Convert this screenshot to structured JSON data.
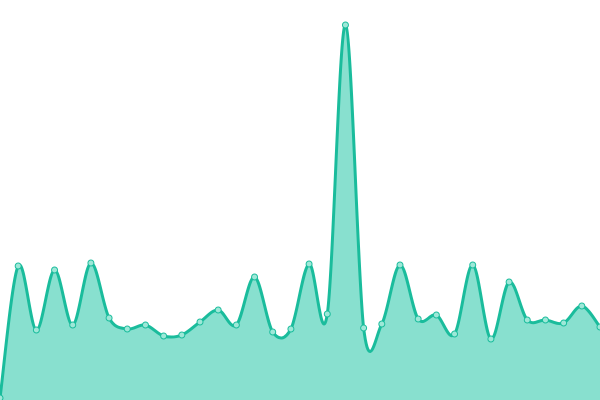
{
  "chart_data": {
    "type": "area",
    "title": "",
    "xlabel": "",
    "ylabel": "",
    "grid": false,
    "legend": "none",
    "smooth": true,
    "x": [
      0,
      1,
      2,
      3,
      4,
      5,
      6,
      7,
      8,
      9,
      10,
      11,
      12,
      13,
      14,
      15,
      16,
      17,
      18,
      19,
      20,
      21,
      22,
      23,
      24,
      25,
      26,
      27,
      28,
      29,
      30,
      31,
      32,
      33
    ],
    "ylim": [
      0,
      400
    ],
    "series": [
      {
        "values": [
          2,
          134,
          70,
          130,
          75,
          137,
          82,
          71,
          75,
          64,
          65,
          78,
          90,
          75,
          123,
          68,
          71,
          136,
          86,
          375,
          72,
          76,
          135,
          81,
          85,
          66,
          135,
          61,
          118,
          80,
          80,
          77,
          94,
          73
        ]
      }
    ],
    "colors": {
      "line": "#1abc9c",
      "fill": "#88e0cf",
      "marker_fill": "#9ee8d8",
      "marker_stroke": "#1abc9c"
    }
  }
}
